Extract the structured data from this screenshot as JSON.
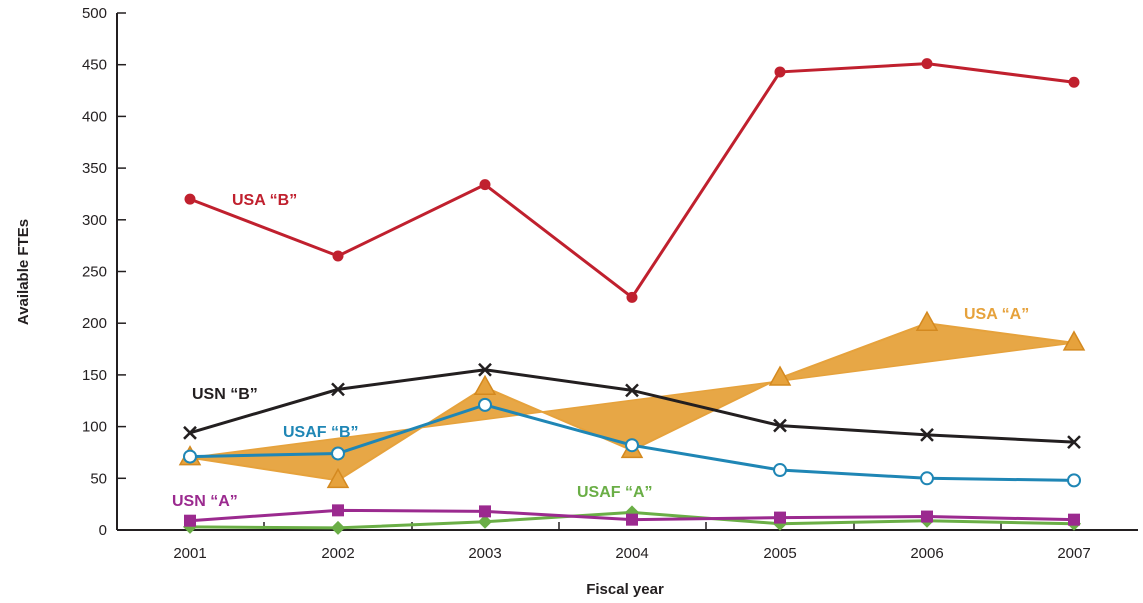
{
  "chart_data": {
    "type": "line",
    "xlabel": "Fiscal year",
    "ylabel": "Available FTEs",
    "ylim": [
      0,
      500
    ],
    "yticks": [
      0,
      50,
      100,
      150,
      200,
      250,
      300,
      350,
      400,
      450,
      500
    ],
    "x": [
      "2001",
      "2002",
      "2003",
      "2004",
      "2005",
      "2006",
      "2007"
    ],
    "grid": false,
    "series": [
      {
        "name": "USA “B”",
        "color": "#c0202e",
        "marker": "circle-filled",
        "values": [
          320,
          265,
          334,
          225,
          443,
          451,
          433
        ]
      },
      {
        "name": "USA “A”",
        "color": "#e6a23c",
        "marker": "triangle",
        "values": [
          70,
          48,
          138,
          77,
          147,
          200,
          181
        ]
      },
      {
        "name": "USN “B”",
        "color": "#231f20",
        "marker": "x",
        "values": [
          94,
          136,
          155,
          135,
          101,
          92,
          85
        ]
      },
      {
        "name": "USAF “B”",
        "color": "#1f86b5",
        "marker": "circle-open",
        "values": [
          71,
          74,
          121,
          82,
          58,
          50,
          48
        ]
      },
      {
        "name": "USN “A”",
        "color": "#9b2a8f",
        "marker": "square",
        "values": [
          9,
          19,
          18,
          10,
          12,
          13,
          10
        ]
      },
      {
        "name": "USAF “A”",
        "color": "#6aae46",
        "marker": "diamond",
        "values": [
          3,
          2,
          8,
          17,
          6,
          9,
          6
        ]
      }
    ]
  }
}
